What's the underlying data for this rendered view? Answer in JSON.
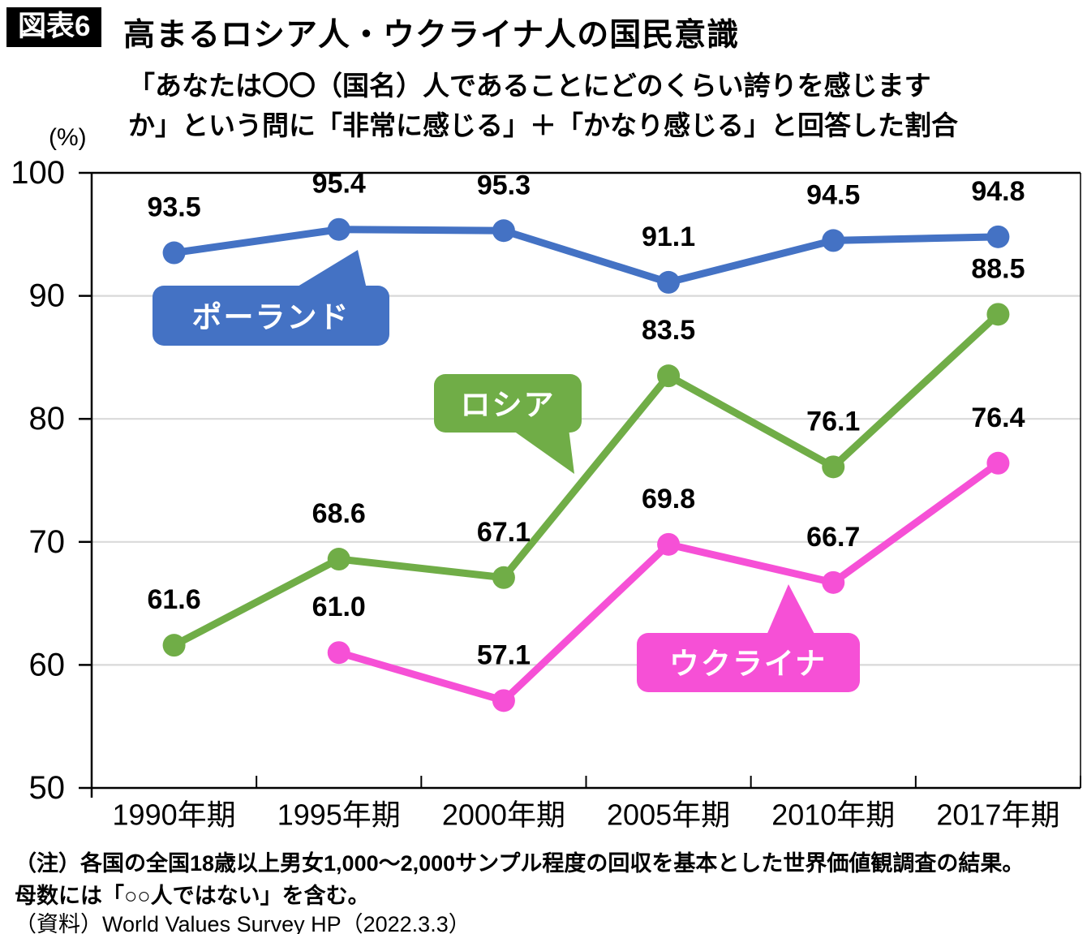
{
  "header": {
    "tag": "図表6",
    "title": "高まるロシア人・ウクライナ人の国民意識"
  },
  "subtitle": {
    "line1": "「あなたは〇〇（国名）人であることにどのくらい誇りを感じます",
    "line2": "か」という問に「非常に感じる」＋「かなり感じる」と回答した割合"
  },
  "y_axis_unit": "(%)",
  "chart_data": {
    "type": "line",
    "title": "高まるロシア人・ウクライナ人の国民意識",
    "categories": [
      "1990年期",
      "1995年期",
      "2000年期",
      "2005年期",
      "2010年期",
      "2017年期"
    ],
    "series": [
      {
        "name": "ポーランド",
        "color": "#4472c4",
        "values": [
          93.5,
          95.4,
          95.3,
          91.1,
          94.5,
          94.8
        ],
        "labels": [
          "93.5",
          "95.4",
          "95.3",
          "91.1",
          "94.5",
          "94.8"
        ]
      },
      {
        "name": "ロシア",
        "color": "#70ad47",
        "values": [
          61.6,
          68.6,
          67.1,
          83.5,
          76.1,
          88.5
        ],
        "labels": [
          "61.6",
          "68.6",
          "67.1",
          "83.5",
          "76.1",
          "88.5"
        ]
      },
      {
        "name": "ウクライナ",
        "color": "#f650d6",
        "values": [
          null,
          61.0,
          57.1,
          69.8,
          66.7,
          76.4
        ],
        "labels": [
          null,
          "61.0",
          "57.1",
          "69.8",
          "66.7",
          "76.4"
        ]
      }
    ],
    "ylabel": "(%)",
    "xlabel": "",
    "ylim": [
      50,
      100
    ],
    "yticks": [
      50,
      60,
      70,
      80,
      90,
      100
    ],
    "grid": true,
    "legend_position": "callout-bubbles-on-plot"
  },
  "notes": {
    "line1": "（注）各国の全国18歳以上男女1,000～2,000サンプル程度の回収を基本とした世界価値観調査の結果。",
    "line2": "母数には「○○人ではない」を含む。",
    "source": "（資料）World Values Survey HP（2022.3.3）"
  }
}
